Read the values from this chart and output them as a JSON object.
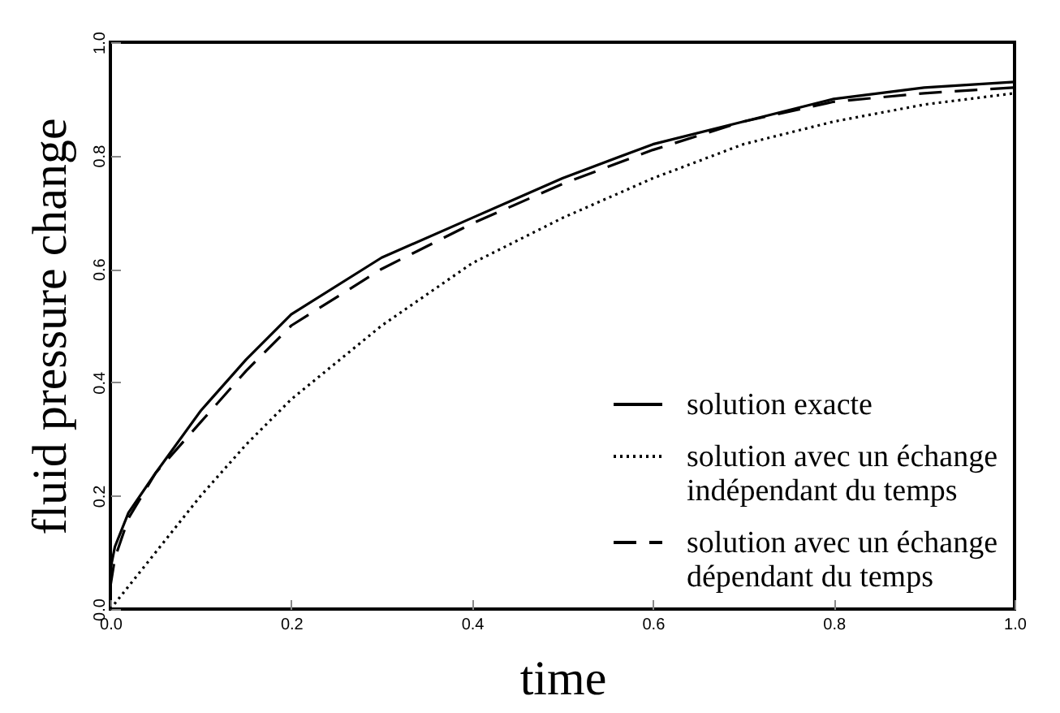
{
  "chart_data": {
    "type": "line",
    "xlabel": "time",
    "ylabel": "fluid pressure change",
    "xlim": [
      0,
      1
    ],
    "ylim": [
      0,
      1
    ],
    "xticks": [
      {
        "value": 0,
        "label": "0.0"
      },
      0.2,
      0.4,
      0.6,
      0.8,
      {
        "value": 1,
        "label": "1.0"
      }
    ],
    "yticks": [
      {
        "value": 0,
        "label": "0.0"
      },
      0.2,
      0.4,
      0.6,
      0.8,
      {
        "value": 1,
        "label": "1.0"
      }
    ],
    "x": [
      0,
      0.005,
      0.02,
      0.05,
      0.1,
      0.15,
      0.2,
      0.3,
      0.4,
      0.5,
      0.6,
      0.7,
      0.8,
      0.9,
      1.0
    ],
    "series": [
      {
        "name": "solution exacte",
        "color": "#000000",
        "line_style": "solid",
        "values": [
          0.07,
          0.11,
          0.17,
          0.24,
          0.35,
          0.44,
          0.52,
          0.62,
          0.69,
          0.76,
          0.82,
          0.86,
          0.9,
          0.92,
          0.93
        ]
      },
      {
        "name": "solution avec un échange indépendant du temps",
        "color": "#000000",
        "line_style": "dotted",
        "values": [
          0,
          0.01,
          0.04,
          0.1,
          0.2,
          0.29,
          0.37,
          0.5,
          0.61,
          0.69,
          0.76,
          0.82,
          0.86,
          0.89,
          0.91
        ]
      },
      {
        "name": "solution avec un échange dépendant du temps",
        "color": "#000000",
        "line_style": "dashed",
        "values": [
          0.04,
          0.09,
          0.16,
          0.24,
          0.33,
          0.42,
          0.5,
          0.6,
          0.68,
          0.75,
          0.81,
          0.86,
          0.895,
          0.91,
          0.92
        ]
      }
    ],
    "grid": false,
    "legend": "bottom right"
  }
}
